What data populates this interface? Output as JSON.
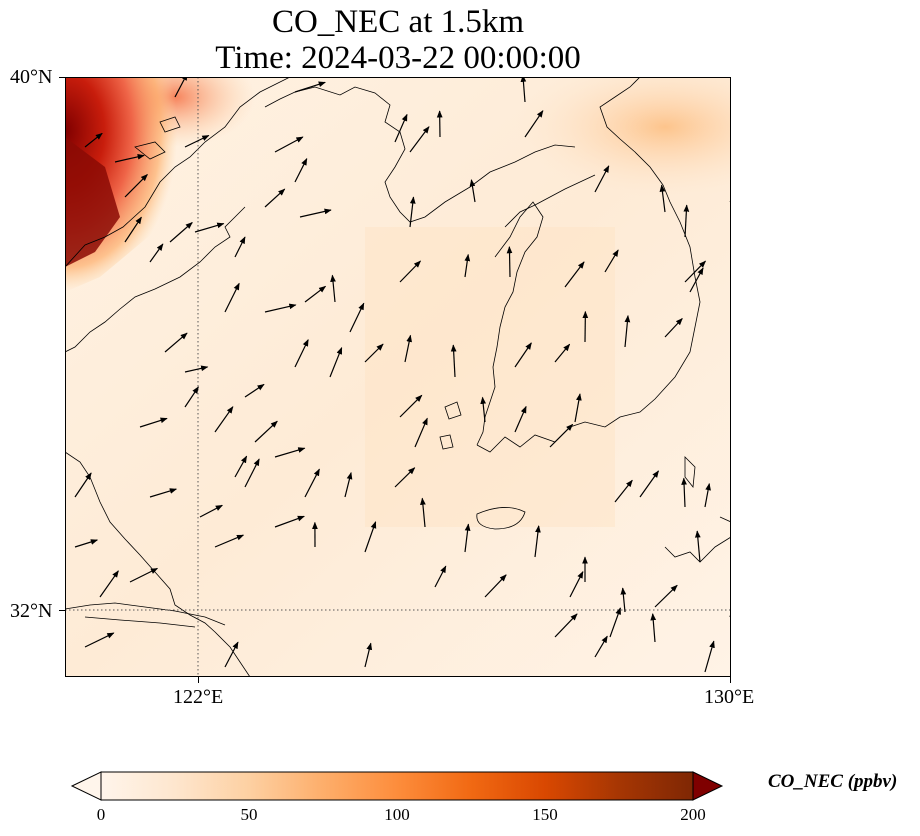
{
  "title": {
    "line1": "CO_NEC at 1.5km",
    "line2": "Time: 2024-03-22 00:00:00"
  },
  "map": {
    "lon_range": [
      120,
      130
    ],
    "lat_range": [
      31,
      40
    ],
    "lat_ticks": [
      {
        "value": 40,
        "label": "40°N"
      },
      {
        "value": 32,
        "label": "32°N"
      }
    ],
    "lon_ticks": [
      {
        "value": 122,
        "label": "122°E"
      },
      {
        "value": 130,
        "label": "130°E"
      }
    ],
    "gridlines": {
      "lon": [
        122
      ],
      "lat": [
        32
      ],
      "style": "dotted"
    },
    "features": [
      "coastline",
      "wind-vectors",
      "co-concentration-field"
    ]
  },
  "colorbar": {
    "label": "CO_NEC (ppbv)",
    "min": 0,
    "max": 200,
    "ticks": [
      {
        "value": 0,
        "label": "0"
      },
      {
        "value": 50,
        "label": "50"
      },
      {
        "value": 100,
        "label": "100"
      },
      {
        "value": 150,
        "label": "150"
      },
      {
        "value": 200,
        "label": "200"
      }
    ],
    "colors": [
      "#fff5eb",
      "#fee6ce",
      "#fdd0a2",
      "#fdae6b",
      "#fd8d3c",
      "#f16913",
      "#d94801",
      "#a63603",
      "#7f2704"
    ],
    "extend": "both"
  }
}
